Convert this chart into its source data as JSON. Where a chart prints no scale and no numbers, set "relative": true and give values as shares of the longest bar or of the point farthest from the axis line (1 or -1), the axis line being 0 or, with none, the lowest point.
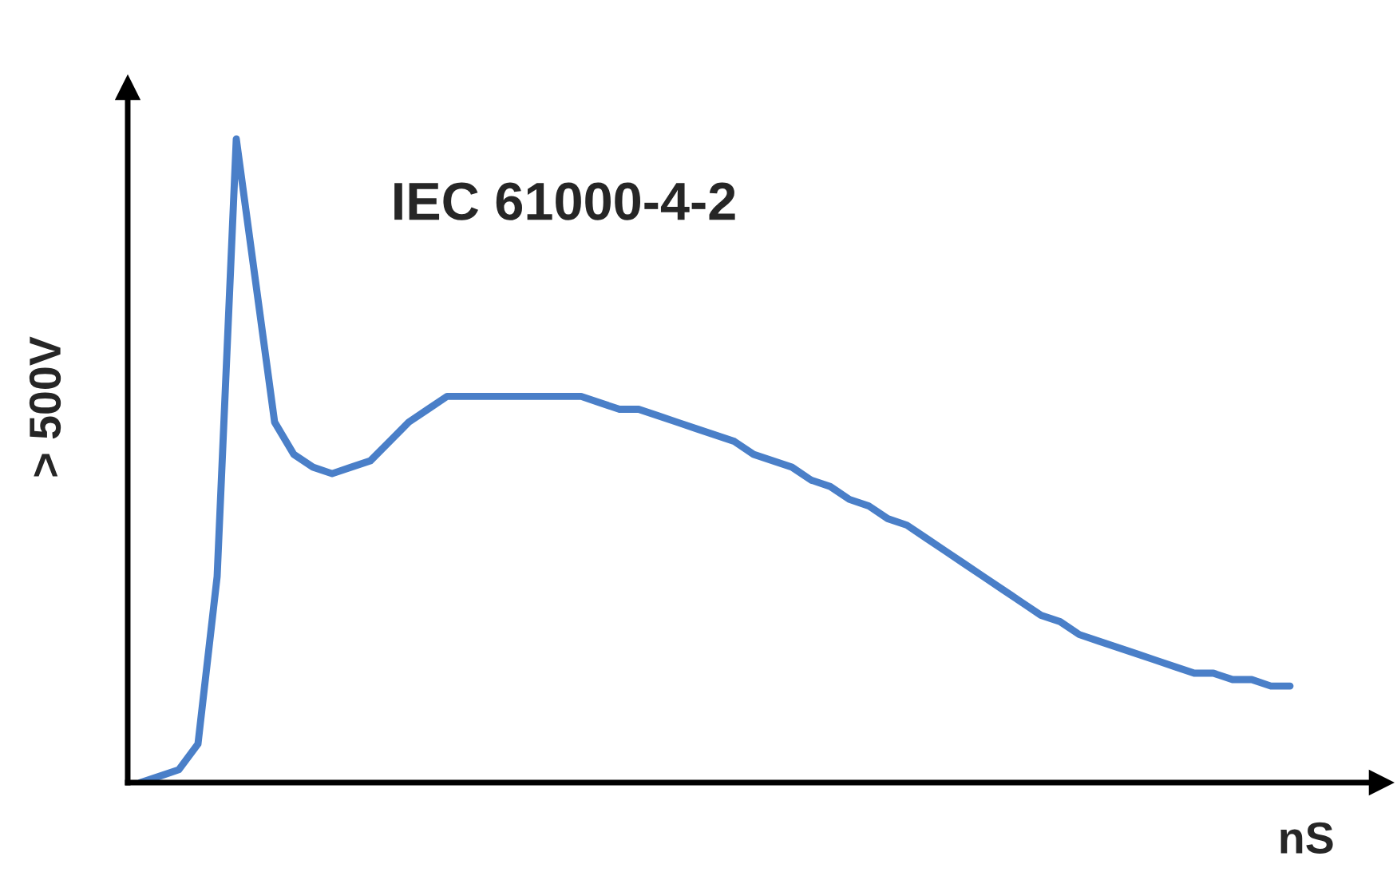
{
  "chart_data": {
    "type": "line",
    "relative": true,
    "annotations": [
      "IEC 61000-4-2"
    ],
    "xlabel": "nS",
    "ylabel": "> 500V",
    "categories": [
      null,
      null,
      null,
      null,
      null,
      null,
      null,
      null,
      null,
      null,
      null,
      null,
      null,
      null,
      null,
      null,
      null,
      null,
      null,
      null,
      null,
      null,
      null,
      null,
      null,
      null,
      null,
      null,
      null,
      null,
      null,
      null,
      null,
      null,
      null,
      null,
      null,
      null,
      null,
      null,
      null,
      null,
      null,
      null,
      null,
      null,
      null,
      null,
      null,
      null,
      null,
      null,
      null,
      null,
      null,
      null,
      null,
      null,
      null,
      null,
      null
    ],
    "series": [
      {
        "color": "#4a7fc8",
        "values": [
          0,
          0.01,
          0.02,
          0.06,
          0.32,
          1.0,
          0.78,
          0.56,
          0.51,
          0.49,
          0.48,
          0.49,
          0.5,
          0.53,
          0.56,
          0.58,
          0.6,
          0.6,
          0.6,
          0.6,
          0.6,
          0.6,
          0.6,
          0.6,
          0.59,
          0.58,
          0.58,
          0.57,
          0.56,
          0.55,
          0.54,
          0.53,
          0.51,
          0.5,
          0.49,
          0.47,
          0.46,
          0.44,
          0.43,
          0.41,
          0.4,
          0.38,
          0.36,
          0.34,
          0.32,
          0.3,
          0.28,
          0.26,
          0.25,
          0.23,
          0.22,
          0.21,
          0.2,
          0.19,
          0.18,
          0.17,
          0.17,
          0.16,
          0.16,
          0.15,
          0.15
        ]
      }
    ],
    "legend": false,
    "marker": "none",
    "line_style": "solid"
  }
}
